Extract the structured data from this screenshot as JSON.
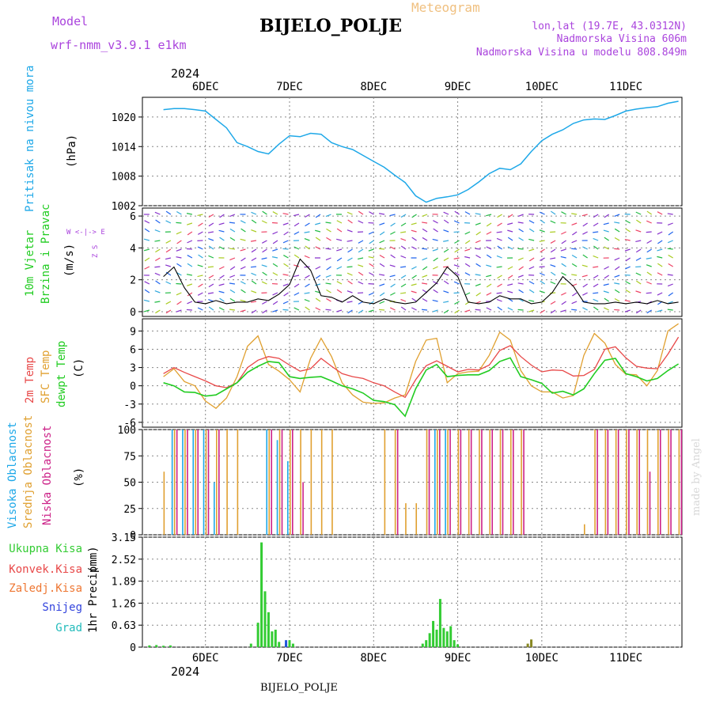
{
  "header": {
    "model_label": "Model",
    "model_name": "wrf-nmm_v3.9.1  e1km",
    "station": "BIJELO_POLJE",
    "meteogram": "Meteogram",
    "lonlat": "lon,lat (19.7E, 43.0312N)",
    "altitude": "Nadmorska Visina 606m",
    "model_altitude": "Nadmorska Visina u modelu 808.849m",
    "footer_station": "BIJELO_POLJE",
    "credit": "made by Angel",
    "year_top": "2024",
    "year_bottom": "2024"
  },
  "colors": {
    "pressure": "#1ea8e8",
    "wind_label": "#22cc22",
    "temp2m": "#e84848",
    "sfc": "#e0a030",
    "dewpt": "#22cc22",
    "cloud_high": "#1ea8e8",
    "cloud_mid": "#e0a030",
    "cloud_low": "#cc2288",
    "precip": "#33cc33",
    "purple": "#aa44dd"
  },
  "chart_data": [
    {
      "type": "line",
      "name": "pressure",
      "ylabel_name": "Pritisak na nivou mora",
      "ylabel_unit": "(hPa)",
      "yticks": [
        "1020",
        "1014",
        "1008",
        "1002"
      ],
      "ylim": [
        1002,
        1024
      ],
      "x_days": [
        "6DEC",
        "7DEC",
        "8DEC",
        "9DEC",
        "10DEC",
        "11DEC"
      ],
      "x_hours": [
        0,
        3,
        6,
        9,
        12,
        15,
        18,
        21,
        24,
        27,
        30,
        33,
        36,
        39,
        42,
        45,
        48,
        51,
        54,
        57,
        60,
        63,
        66,
        69,
        72,
        75,
        78,
        81,
        84,
        87,
        90,
        93,
        96,
        99,
        102,
        105,
        108,
        111,
        114,
        117,
        120,
        123,
        126,
        129,
        132,
        135,
        138,
        141,
        144,
        147
      ],
      "series": [
        {
          "values": [
            1021.5,
            1021.7,
            1021.7,
            1021.5,
            1021.2,
            1019.5,
            1017.8,
            1014.8,
            1014,
            1013,
            1012.5,
            1014.5,
            1016.2,
            1016,
            1016.7,
            1016.5,
            1014.8,
            1014,
            1013.4,
            1012.2,
            1011,
            1009.8,
            1008.2,
            1006.7,
            1004,
            1002.7,
            1003.5,
            1003.8,
            1004.2,
            1005.3,
            1006.8,
            1008.5,
            1009.6,
            1009.3,
            1010.5,
            1013,
            1015.2,
            1016.5,
            1017.4,
            1018.7,
            1019.4,
            1019.6,
            1019.5,
            1020.3,
            1021.2,
            1021.6,
            1021.9,
            1022.1,
            1022.8,
            1023.2
          ]
        }
      ]
    },
    {
      "type": "line",
      "name": "wind",
      "ylabel_name1": "10m Vjetar",
      "ylabel_name2": "Brzina i Pravac",
      "ylabel_unit": "(m/s)",
      "compass_ns": "Z   S",
      "compass_we": "W <-|-> E",
      "yticks": [
        "6",
        "4",
        "2",
        "0"
      ],
      "ylim": [
        -0.3,
        6.5
      ],
      "x_hours": [
        0,
        3,
        6,
        9,
        12,
        15,
        18,
        21,
        24,
        27,
        30,
        33,
        36,
        39,
        42,
        45,
        48,
        51,
        54,
        57,
        60,
        63,
        66,
        69,
        72,
        75,
        78,
        81,
        84,
        87,
        90,
        93,
        96,
        99,
        102,
        105,
        108,
        111,
        114,
        117,
        120,
        123,
        126,
        129,
        132,
        135,
        138,
        141,
        144,
        147
      ],
      "series": [
        {
          "name": "speed",
          "values": [
            2.2,
            2.8,
            1.5,
            0.6,
            0.5,
            0.7,
            0.5,
            0.6,
            0.6,
            0.8,
            0.7,
            1.1,
            1.7,
            3.3,
            2.6,
            1,
            0.9,
            0.6,
            1,
            0.6,
            0.5,
            0.8,
            0.6,
            0.5,
            0.6,
            1.2,
            1.8,
            2.8,
            2.2,
            0.6,
            0.5,
            0.6,
            1,
            0.8,
            0.8,
            0.5,
            0.6,
            1.2,
            2.2,
            1.6,
            0.6,
            0.5,
            0.5,
            0.6,
            0.5,
            0.6,
            0.5,
            0.7,
            0.5,
            0.6
          ]
        }
      ]
    },
    {
      "type": "line",
      "name": "temperature",
      "ylabel_name1": "2m Temp",
      "ylabel_name2": "SFC Temp",
      "ylabel_name3": "dewpt Temp",
      "ylabel_unit": "(C)",
      "yticks": [
        "9",
        "6",
        "3",
        "0",
        "-3",
        "-6"
      ],
      "ylim": [
        -6.8,
        11
      ],
      "x_hours": [
        0,
        3,
        6,
        9,
        12,
        15,
        18,
        21,
        24,
        27,
        30,
        33,
        36,
        39,
        42,
        45,
        48,
        51,
        54,
        57,
        60,
        63,
        66,
        69,
        72,
        75,
        78,
        81,
        84,
        87,
        90,
        93,
        96,
        99,
        102,
        105,
        108,
        111,
        114,
        117,
        120,
        123,
        126,
        129,
        132,
        135,
        138,
        141,
        144,
        147
      ],
      "series": [
        {
          "name": "2m",
          "values": [
            2,
            3,
            2.2,
            1.5,
            0.8,
            0,
            -0.3,
            0.5,
            3,
            4.2,
            4.8,
            4.5,
            3.4,
            2.4,
            2.8,
            4.5,
            3.2,
            2,
            1.5,
            1.2,
            0.5,
            0,
            -1,
            -1.9,
            1,
            3.3,
            4.1,
            3.2,
            2.3,
            2.7,
            2.6,
            3.4,
            5.8,
            6.6,
            4.8,
            3.4,
            2.3,
            2.6,
            2.5,
            1.6,
            1.7,
            2.7,
            6,
            6.4,
            4.6,
            3.2,
            2.9,
            2.8,
            5.2,
            8
          ]
        },
        {
          "name": "sfc",
          "values": [
            1.5,
            2.8,
            0.7,
            0,
            -2.5,
            -3.7,
            -2,
            1.5,
            6.5,
            8.2,
            3.5,
            2.4,
            1,
            -1,
            4.5,
            7.8,
            4.8,
            0.5,
            -1.5,
            -2.7,
            -2.9,
            -2.8,
            -2,
            -1.5,
            4,
            7.5,
            7.8,
            0.5,
            2,
            2.3,
            2.4,
            5,
            8.8,
            7.5,
            2.5,
            0,
            -1,
            -1,
            -2,
            -1.6,
            5,
            8.6,
            7,
            3.5,
            1.9,
            1.8,
            0,
            2.5,
            9,
            10.2
          ]
        },
        {
          "name": "dewpt",
          "values": [
            0.5,
            0,
            -1,
            -1.1,
            -1.7,
            -1.5,
            -0.5,
            0.5,
            2.2,
            3.2,
            4,
            3.8,
            1.5,
            1.2,
            1.4,
            1.5,
            0.8,
            0,
            -0.5,
            -1.2,
            -2.4,
            -2.6,
            -3.1,
            -5,
            -0.5,
            2.6,
            3.5,
            1.5,
            1.7,
            1.8,
            1.8,
            2.5,
            4,
            4.6,
            1.5,
            1,
            0.4,
            -1.2,
            -0.9,
            -1.5,
            -0.5,
            2,
            4.2,
            4.5,
            2,
            1.5,
            0.8,
            1.2,
            2.5,
            3.6
          ]
        }
      ]
    },
    {
      "type": "bar",
      "name": "clouds",
      "ylabel_name1": "Visoka Oblacnost",
      "ylabel_name2": "Srednja Oblacnost",
      "ylabel_name3": "Niska Oblacnost",
      "ylabel_unit": "(%)",
      "yticks": [
        "100",
        "75",
        "50",
        "25",
        "0"
      ],
      "ylim": [
        0,
        100
      ],
      "x_hours": [
        0,
        3,
        6,
        9,
        12,
        15,
        18,
        21,
        24,
        27,
        30,
        33,
        36,
        39,
        42,
        45,
        48,
        51,
        54,
        57,
        60,
        63,
        66,
        69,
        72,
        75,
        78,
        81,
        84,
        87,
        90,
        93,
        96,
        99,
        102,
        105,
        108,
        111,
        114,
        117,
        120,
        123,
        126,
        129,
        132,
        135,
        138,
        141,
        144,
        147
      ],
      "series": [
        {
          "name": "high",
          "values": [
            0,
            100,
            100,
            100,
            100,
            50,
            0,
            0,
            0,
            0,
            100,
            90,
            70,
            0,
            0,
            0,
            0,
            0,
            0,
            0,
            0,
            0,
            0,
            0,
            0,
            0,
            100,
            100,
            0,
            0,
            0,
            0,
            0,
            0,
            0,
            0,
            0,
            0,
            0,
            0,
            0,
            0,
            0,
            0,
            0,
            0,
            0,
            0,
            0,
            0
          ]
        },
        {
          "name": "mid",
          "values": [
            60,
            100,
            100,
            100,
            100,
            100,
            100,
            100,
            0,
            0,
            100,
            100,
            100,
            100,
            100,
            100,
            100,
            0,
            0,
            0,
            0,
            100,
            100,
            30,
            30,
            100,
            100,
            100,
            100,
            100,
            100,
            100,
            100,
            100,
            100,
            0,
            0,
            0,
            0,
            0,
            10,
            100,
            100,
            100,
            100,
            100,
            100,
            100,
            100,
            100
          ]
        },
        {
          "name": "low",
          "values": [
            0,
            100,
            100,
            100,
            100,
            100,
            0,
            0,
            0,
            0,
            100,
            100,
            100,
            50,
            0,
            0,
            0,
            0,
            0,
            0,
            0,
            0,
            100,
            0,
            0,
            100,
            100,
            100,
            100,
            100,
            100,
            100,
            100,
            100,
            100,
            0,
            0,
            0,
            0,
            0,
            0,
            100,
            100,
            100,
            100,
            100,
            60,
            100,
            100,
            100
          ]
        }
      ]
    },
    {
      "type": "bar",
      "name": "precipitation",
      "ylabel_name": "1hr Precip",
      "ylabel_unit": "(mm)",
      "legend": [
        "Ukupna  Kisa",
        "Konvek.Kisa",
        "Zaledj.Kisa",
        "Snijeg",
        "Grad"
      ],
      "yticks": [
        "3.15",
        "2.52",
        "1.89",
        "1.26",
        "0.63",
        "0"
      ],
      "ylim": [
        0,
        3.15
      ],
      "bars": [
        {
          "x": 2,
          "v": 0.05
        },
        {
          "x": 4,
          "v": 0.06
        },
        {
          "x": 6,
          "v": 0.04
        },
        {
          "x": 8,
          "v": 0.05
        },
        {
          "x": 31,
          "v": 0.1
        },
        {
          "x": 33,
          "v": 0.7
        },
        {
          "x": 34,
          "v": 3.0
        },
        {
          "x": 35,
          "v": 1.6
        },
        {
          "x": 36,
          "v": 1.0
        },
        {
          "x": 37,
          "v": 0.45
        },
        {
          "x": 38,
          "v": 0.5
        },
        {
          "x": 39,
          "v": 0.15
        },
        {
          "x": 41,
          "v": 0.1
        },
        {
          "x": 42,
          "v": 0.2
        },
        {
          "x": 43,
          "v": 0.1
        },
        {
          "x": 80,
          "v": 0.1
        },
        {
          "x": 81,
          "v": 0.2
        },
        {
          "x": 82,
          "v": 0.4
        },
        {
          "x": 83,
          "v": 0.75
        },
        {
          "x": 84,
          "v": 0.5
        },
        {
          "x": 85,
          "v": 1.38
        },
        {
          "x": 86,
          "v": 0.55
        },
        {
          "x": 87,
          "v": 0.45
        },
        {
          "x": 88,
          "v": 0.6
        },
        {
          "x": 89,
          "v": 0.2
        },
        {
          "x": 90,
          "v": 0.08
        }
      ],
      "bars_alt": [
        {
          "x": 41,
          "v": 0.2,
          "c": "#2255dd"
        },
        {
          "x": 110,
          "v": 0.1,
          "c": "#888822"
        },
        {
          "x": 111,
          "v": 0.22,
          "c": "#888822"
        }
      ]
    }
  ],
  "x_axis": {
    "days": [
      "6DEC",
      "7DEC",
      "8DEC",
      "9DEC",
      "10DEC",
      "11DEC"
    ],
    "day_hours": [
      12,
      36,
      60,
      84,
      108,
      132
    ]
  }
}
